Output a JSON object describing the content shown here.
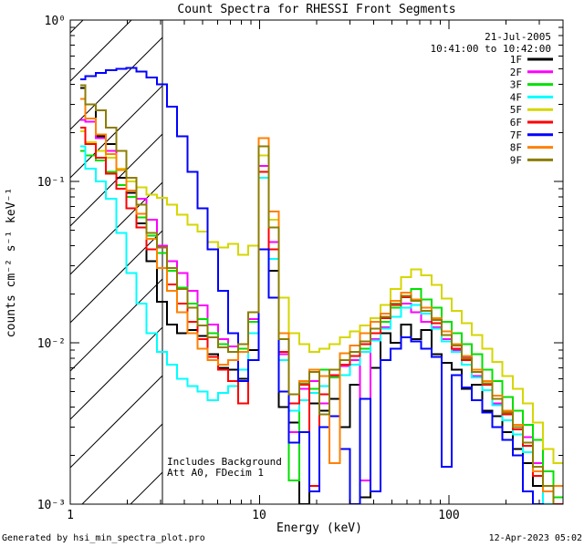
{
  "title": "Count Spectra for RHESSI Front Segments",
  "header": {
    "date": "21-Jul-2005",
    "time_range": "10:41:00 to 10:42:00"
  },
  "annotation": {
    "line1": "Includes Background",
    "line2": "Att A0, FDecim 1"
  },
  "footer": {
    "left": "Generated by hsi_min_spectra_plot.pro",
    "right": "12-Apr-2023 05:02"
  },
  "axis_color": "#000000",
  "background_color": "#ffffff",
  "chart_data": {
    "type": "line",
    "mode": "histogram-steps",
    "title": "Count Spectra for RHESSI Front Segments",
    "xlabel": "Energy (keV)",
    "ylabel": "counts cm⁻² s⁻¹ keV⁻¹",
    "xscale": "log",
    "yscale": "log",
    "xlim": [
      1,
      400
    ],
    "ylim": [
      0.001,
      1
    ],
    "xticks": [
      1,
      10,
      100
    ],
    "xticklabels": [
      "1",
      "10",
      "100"
    ],
    "yticks": [
      1,
      0.1,
      0.01,
      0.001
    ],
    "yticklabels": [
      "10⁰",
      "10⁻¹",
      "10⁻²",
      "10⁻³"
    ],
    "grid": false,
    "legend_position": "top-right",
    "excluded_region": {
      "from": 1,
      "to": 3.06,
      "style": "hatched"
    },
    "energies_keV": [
      1.13,
      1.28,
      1.45,
      1.64,
      1.86,
      2.1,
      2.38,
      2.69,
      3.05,
      3.45,
      3.9,
      4.42,
      5.0,
      5.66,
      6.4,
      7.24,
      8.19,
      9.27,
      10.5,
      11.9,
      13.4,
      15.2,
      17.2,
      19.5,
      22.0,
      24.9,
      28.2,
      31.9,
      36.1,
      40.9,
      46.3,
      52.4,
      59.3,
      67.1,
      75.9,
      85.9,
      97.2,
      110,
      124,
      141,
      159,
      180,
      204,
      231,
      261,
      295,
      334,
      378
    ],
    "series": [
      {
        "name": "1F",
        "color": "#000000",
        "values": [
          0.38,
          0.3,
          0.19,
          0.17,
          0.105,
          0.085,
          0.055,
          0.032,
          0.018,
          0.013,
          0.0115,
          0.012,
          0.011,
          0.0085,
          0.007,
          0.0068,
          0.006,
          0.009,
          0.105,
          0.028,
          0.004,
          0.0032,
          0.001,
          0.0042,
          0.0038,
          0.0045,
          0.003,
          0.0055,
          0.0011,
          0.007,
          0.0115,
          0.01,
          0.013,
          0.0105,
          0.012,
          0.0085,
          0.0075,
          0.0068,
          0.0052,
          0.0055,
          0.0038,
          0.0035,
          0.0028,
          0.0022,
          0.0018,
          0.0013,
          0.001,
          0.0008
        ]
      },
      {
        "name": "2F",
        "color": "#FF00FF",
        "values": [
          0.24,
          0.235,
          0.185,
          0.155,
          0.12,
          0.1,
          0.078,
          0.058,
          0.04,
          0.032,
          0.027,
          0.021,
          0.017,
          0.013,
          0.0105,
          0.0095,
          0.0088,
          0.014,
          0.125,
          0.042,
          0.0085,
          0.0028,
          0.0052,
          0.0058,
          0.0042,
          0.0062,
          0.0072,
          0.0078,
          0.0014,
          0.0105,
          0.0125,
          0.0145,
          0.0175,
          0.0155,
          0.0135,
          0.0125,
          0.0105,
          0.009,
          0.0082,
          0.0062,
          0.0058,
          0.0042,
          0.0036,
          0.003,
          0.0026,
          0.0018,
          0.0012,
          0.001
        ]
      },
      {
        "name": "3F",
        "color": "#00E000",
        "values": [
          0.155,
          0.145,
          0.135,
          0.115,
          0.095,
          0.08,
          0.06,
          0.046,
          0.036,
          0.028,
          0.022,
          0.0175,
          0.014,
          0.0115,
          0.0098,
          0.0088,
          0.0092,
          0.0135,
          0.115,
          0.038,
          0.0088,
          0.0014,
          0.0058,
          0.0052,
          0.0068,
          0.0061,
          0.0078,
          0.0088,
          0.0092,
          0.0115,
          0.0135,
          0.0165,
          0.0195,
          0.0215,
          0.0185,
          0.0165,
          0.0135,
          0.0115,
          0.0098,
          0.0085,
          0.0068,
          0.0058,
          0.0046,
          0.0038,
          0.0031,
          0.0025,
          0.0016,
          0.0011
        ]
      },
      {
        "name": "4F",
        "color": "#00FFFF",
        "values": [
          0.165,
          0.12,
          0.1,
          0.078,
          0.048,
          0.027,
          0.0175,
          0.0115,
          0.0088,
          0.0073,
          0.006,
          0.0054,
          0.005,
          0.0044,
          0.0049,
          0.0054,
          0.0068,
          0.0115,
          0.105,
          0.033,
          0.0078,
          0.0038,
          0.0044,
          0.0049,
          0.0054,
          0.0035,
          0.0063,
          0.0073,
          0.0088,
          0.0103,
          0.0122,
          0.0145,
          0.0165,
          0.0172,
          0.0152,
          0.0122,
          0.0102,
          0.0088,
          0.0073,
          0.0061,
          0.0051,
          0.0041,
          0.0033,
          0.0027,
          0.0021,
          0.0015,
          0.001,
          0.0009
        ]
      },
      {
        "name": "5F",
        "color": "#D6D600",
        "values": [
          0.205,
          0.175,
          0.155,
          0.14,
          0.12,
          0.1,
          0.092,
          0.083,
          0.079,
          0.072,
          0.062,
          0.054,
          0.049,
          0.042,
          0.039,
          0.041,
          0.035,
          0.04,
          0.145,
          0.058,
          0.019,
          0.0115,
          0.0098,
          0.0088,
          0.0092,
          0.0098,
          0.0108,
          0.0118,
          0.0128,
          0.0142,
          0.0172,
          0.0215,
          0.0255,
          0.0285,
          0.0262,
          0.0228,
          0.0188,
          0.0158,
          0.0132,
          0.0112,
          0.0092,
          0.0076,
          0.0062,
          0.0052,
          0.0042,
          0.0032,
          0.0022,
          0.0018
        ]
      },
      {
        "name": "6F",
        "color": "#FF0000",
        "values": [
          0.215,
          0.17,
          0.14,
          0.112,
          0.09,
          0.068,
          0.052,
          0.038,
          0.029,
          0.023,
          0.0175,
          0.0135,
          0.0105,
          0.0082,
          0.0068,
          0.0058,
          0.0042,
          0.0078,
          0.115,
          0.038,
          0.0088,
          0.0042,
          0.0055,
          0.0013,
          0.0048,
          0.0063,
          0.0073,
          0.0083,
          0.0098,
          0.0115,
          0.0142,
          0.0172,
          0.0192,
          0.0182,
          0.0158,
          0.0132,
          0.0112,
          0.0092,
          0.0078,
          0.0066,
          0.0055,
          0.0045,
          0.0036,
          0.0029,
          0.0023,
          0.0015,
          0.0012,
          0.001
        ]
      },
      {
        "name": "7F",
        "color": "#0000FF",
        "values": [
          0.43,
          0.45,
          0.47,
          0.49,
          0.5,
          0.505,
          0.48,
          0.44,
          0.4,
          0.29,
          0.19,
          0.115,
          0.068,
          0.038,
          0.021,
          0.0115,
          0.0058,
          0.0078,
          0.038,
          0.019,
          0.005,
          0.0024,
          0.0028,
          0.0012,
          0.003,
          0.0035,
          0.0022,
          0.001,
          0.0045,
          0.0012,
          0.0078,
          0.0092,
          0.0108,
          0.0102,
          0.0092,
          0.0082,
          0.0017,
          0.0063,
          0.0053,
          0.0044,
          0.0037,
          0.003,
          0.0025,
          0.002,
          0.0012,
          0.001,
          0.0009,
          0.0008
        ]
      },
      {
        "name": "8F",
        "color": "#FF8000",
        "values": [
          0.325,
          0.245,
          0.195,
          0.148,
          0.118,
          0.088,
          0.063,
          0.044,
          0.029,
          0.021,
          0.0155,
          0.0115,
          0.0092,
          0.0078,
          0.0073,
          0.0078,
          0.0088,
          0.0155,
          0.185,
          0.065,
          0.0115,
          0.0048,
          0.0058,
          0.0068,
          0.0062,
          0.0018,
          0.0086,
          0.0096,
          0.0115,
          0.0135,
          0.0152,
          0.0182,
          0.0205,
          0.0185,
          0.0165,
          0.0142,
          0.0118,
          0.0098,
          0.0083,
          0.0068,
          0.0058,
          0.0047,
          0.0038,
          0.0031,
          0.0024,
          0.0016,
          0.0012,
          0.0013
        ]
      },
      {
        "name": "9F",
        "color": "#8C7D00",
        "values": [
          0.395,
          0.3,
          0.275,
          0.215,
          0.155,
          0.105,
          0.072,
          0.048,
          0.039,
          0.029,
          0.0215,
          0.0165,
          0.0128,
          0.0108,
          0.0094,
          0.0088,
          0.0098,
          0.0155,
          0.165,
          0.052,
          0.0105,
          0.0048,
          0.0056,
          0.0066,
          0.0036,
          0.0068,
          0.0078,
          0.0088,
          0.0102,
          0.0122,
          0.0145,
          0.0175,
          0.0195,
          0.0182,
          0.0158,
          0.0138,
          0.0112,
          0.0096,
          0.008,
          0.0066,
          0.0056,
          0.0045,
          0.0037,
          0.003,
          0.0024,
          0.0017,
          0.0013,
          0.0009
        ]
      }
    ]
  }
}
